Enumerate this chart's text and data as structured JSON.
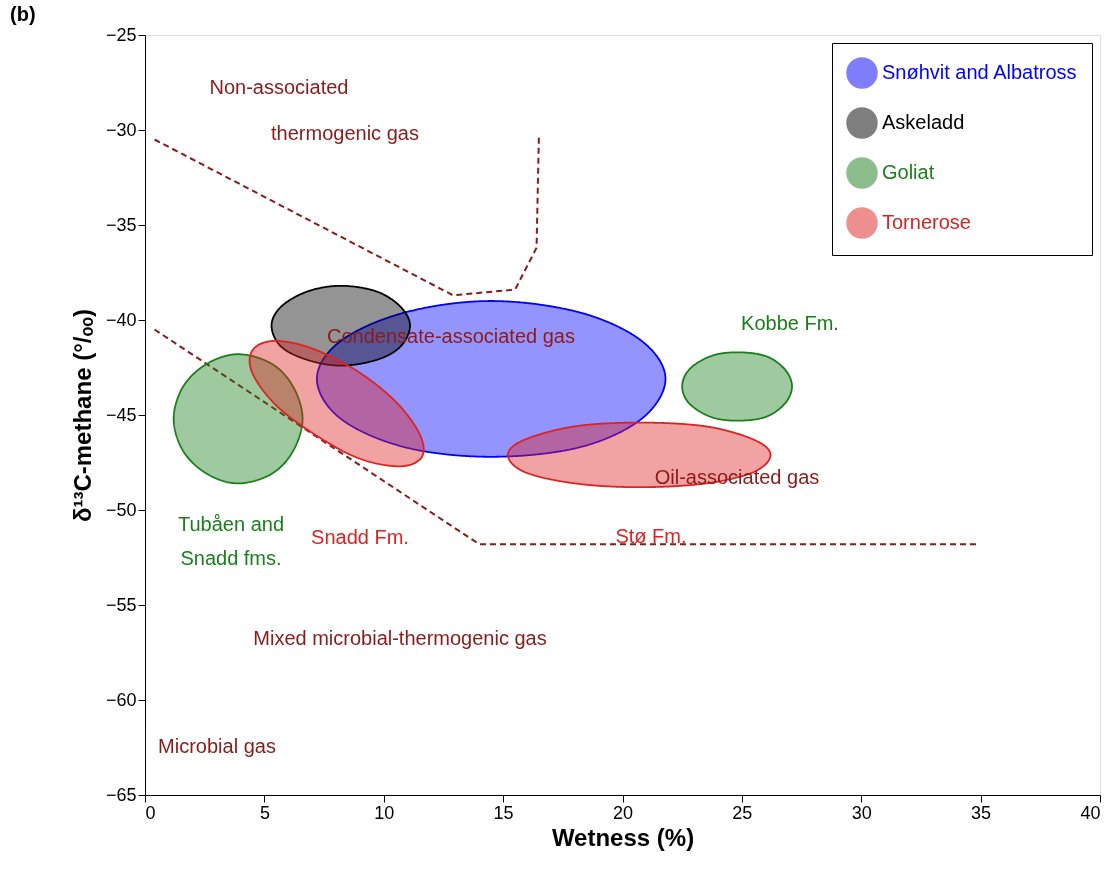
{
  "chart_data": {
    "type": "area",
    "xlabel": "Wetness (%)",
    "ylabel": "δ¹³C-methane (°/ₒₒ)",
    "xlim": [
      0,
      40
    ],
    "xticks": [
      0,
      5,
      10,
      15,
      20,
      25,
      30,
      35,
      40
    ],
    "ylim": [
      -65,
      -25
    ],
    "yticks": [
      -65,
      -60,
      -55,
      -50,
      -45,
      -40,
      -35,
      -30,
      -25
    ],
    "grid": false,
    "legend": "top right",
    "marker": "none",
    "series": [
      {
        "type": "line",
        "line_style": "dashed",
        "color": "#8b1a1a",
        "x": [
          0.4,
          12.9,
          15.5,
          16.4,
          16.5
        ],
        "values": [
          -30.5,
          -38.7,
          -38.4,
          -36.2,
          -30.2
        ]
      },
      {
        "type": "line",
        "line_style": "dashed",
        "color": "#8b1a1a",
        "x": [
          0.4,
          14.0,
          34.9
        ],
        "values": [
          -40.5,
          -51.8,
          -51.8
        ]
      },
      {
        "name": "Snøhvit and Albatross",
        "color": "#0000ff",
        "x": [
          21.8,
          20.8,
          18.2,
          14.5,
          10.9,
          8.2,
          7.2,
          8.2,
          10.9,
          14.5,
          18.2,
          20.8
        ],
        "values": [
          -43.1,
          -41.1,
          -39.6,
          -39.0,
          -39.6,
          -41.1,
          -43.1,
          -45.2,
          -46.7,
          -47.2,
          -46.7,
          -45.2
        ]
      },
      {
        "name": "Askeladd",
        "color": "#000000",
        "x": [
          11.1,
          10.7,
          9.7,
          8.2,
          6.8,
          5.7,
          5.3,
          5.7,
          6.8,
          8.2,
          9.7,
          10.7
        ],
        "values": [
          -40.3,
          -39.3,
          -38.5,
          -38.2,
          -38.5,
          -39.3,
          -40.3,
          -41.4,
          -42.1,
          -42.4,
          -42.1,
          -41.4
        ]
      },
      {
        "name": "Goliat",
        "color": "#1a7f1a",
        "x": [
          6.6,
          6.2,
          5.3,
          3.9,
          2.6,
          1.6,
          1.2,
          1.6,
          2.6,
          3.9,
          5.3,
          6.2
        ],
        "values": [
          -45.2,
          -43.5,
          -42.3,
          -41.8,
          -42.3,
          -43.5,
          -45.2,
          -46.9,
          -48.1,
          -48.6,
          -48.1,
          -46.9
        ]
      },
      {
        "color": "#1a7f1a",
        "x": [
          27.1,
          26.8,
          26.0,
          24.8,
          23.7,
          22.8,
          22.5,
          22.8,
          23.7,
          24.8,
          26.0,
          26.8
        ],
        "values": [
          -43.5,
          -42.6,
          -41.9,
          -41.7,
          -41.9,
          -42.6,
          -43.5,
          -44.4,
          -45.1,
          -45.3,
          -45.1,
          -44.4
        ]
      },
      {
        "name": "Tornerose",
        "color": "#dd2222",
        "x": [
          11.6,
          10.7,
          9.0,
          7.2,
          5.5,
          4.5,
          4.5,
          5.4,
          7.0,
          8.9,
          10.5,
          11.5
        ],
        "values": [
          -47.2,
          -47.7,
          -47.3,
          -46.1,
          -44.5,
          -42.8,
          -41.6,
          -41.1,
          -41.5,
          -42.7,
          -44.3,
          -46.0
        ]
      },
      {
        "color": "#dd2222",
        "x": [
          26.2,
          25.5,
          23.5,
          20.7,
          18.0,
          15.9,
          15.2,
          15.9,
          18.0,
          20.7,
          23.5,
          25.5
        ],
        "values": [
          -47.1,
          -46.3,
          -45.6,
          -45.4,
          -45.6,
          -46.3,
          -47.1,
          -48.0,
          -48.6,
          -48.8,
          -48.6,
          -48.0
        ]
      }
    ],
    "annotations": [
      "(b)",
      "Non-associated",
      "thermogenic gas",
      "Condensate-associated gas",
      "Oil-associated gas",
      "Mixed microbial-thermogenic gas",
      "Microbial gas",
      "Kobbe Fm.",
      "Tubåen and",
      "Snadd fms.",
      "Snadd Fm.",
      "Stø Fm."
    ]
  }
}
